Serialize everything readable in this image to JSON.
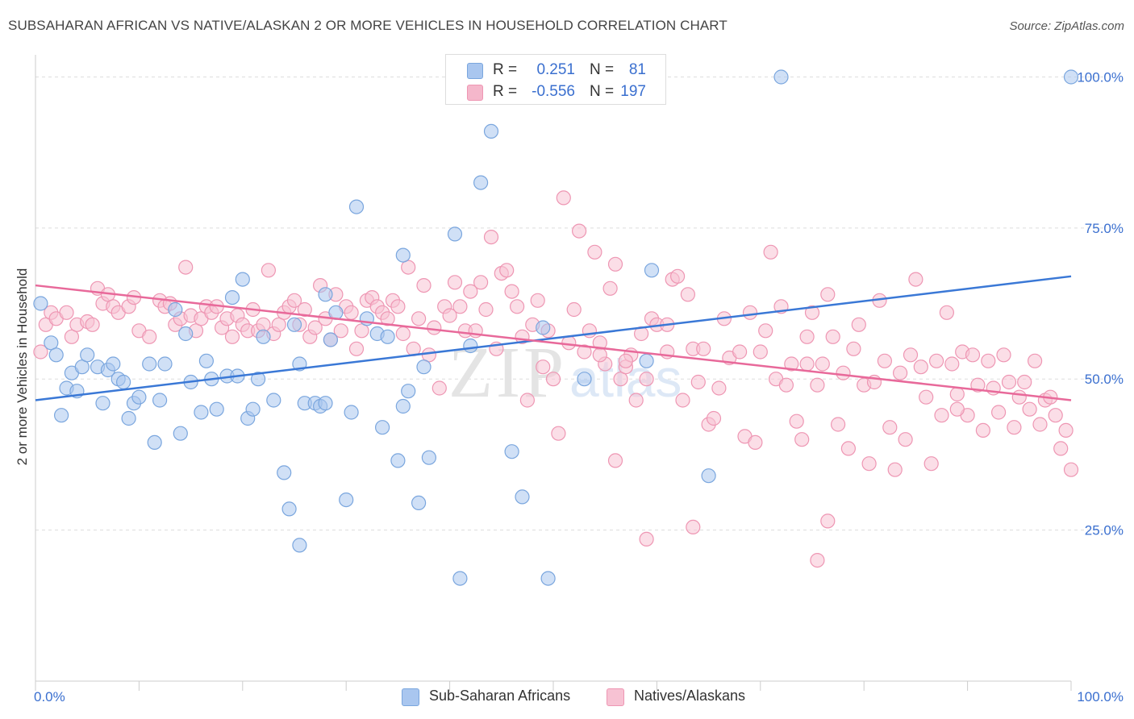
{
  "header": {
    "title": "SUBSAHARAN AFRICAN VS NATIVE/ALASKAN 2 OR MORE VEHICLES IN HOUSEHOLD CORRELATION CHART",
    "source": "Source: ZipAtlas.com"
  },
  "stats_legend": {
    "rows": [
      {
        "r_label": "R =",
        "r_value": "0.251",
        "n_label": "N =",
        "n_value": "81",
        "color": "#a9c6ef"
      },
      {
        "r_label": "R =",
        "r_value": "-0.556",
        "n_label": "N =",
        "n_value": "197",
        "color": "#f5b7cb"
      }
    ]
  },
  "colors": {
    "blue_fill": "#a9c6ef",
    "blue_stroke": "#7aa6de",
    "blue_line": "#3a78d6",
    "pink_fill": "#f7c2d3",
    "pink_stroke": "#ee96b3",
    "pink_line": "#e8699a",
    "grid": "#dddddd",
    "tick_text": "#3a6fcf"
  },
  "chart_data": {
    "type": "scatter",
    "title": "SUBSAHARAN AFRICAN VS NATIVE/ALASKAN 2 OR MORE VEHICLES IN HOUSEHOLD CORRELATION CHART",
    "xlabel": "",
    "ylabel": "2 or more Vehicles in Household",
    "xlim": [
      0,
      100
    ],
    "ylim": [
      0,
      105
    ],
    "x_tick_labels": [
      "0.0%",
      "100.0%"
    ],
    "y_ticks": [
      25,
      50,
      75,
      100
    ],
    "y_tick_labels": [
      "25.0%",
      "50.0%",
      "75.0%",
      "100.0%"
    ],
    "grid": true,
    "legend_position": "bottom",
    "watermark": "ZIPatlas",
    "series": [
      {
        "name": "Sub-Saharan Africans",
        "trend": {
          "x": [
            0,
            100
          ],
          "y": [
            46.5,
            67.0
          ]
        },
        "points": [
          [
            0.5,
            62.5
          ],
          [
            1.5,
            56
          ],
          [
            2,
            54
          ],
          [
            2.5,
            44
          ],
          [
            3,
            48.5
          ],
          [
            3.5,
            51
          ],
          [
            4,
            48
          ],
          [
            4.5,
            52
          ],
          [
            5,
            54
          ],
          [
            6,
            52
          ],
          [
            6.5,
            46
          ],
          [
            7,
            51.5
          ],
          [
            7.5,
            52.5
          ],
          [
            8,
            50
          ],
          [
            8.5,
            49.5
          ],
          [
            9,
            43.5
          ],
          [
            9.5,
            46
          ],
          [
            10,
            47
          ],
          [
            11,
            52.5
          ],
          [
            11.5,
            39.5
          ],
          [
            12,
            46.5
          ],
          [
            12.5,
            52.5
          ],
          [
            13.5,
            61.5
          ],
          [
            14,
            41
          ],
          [
            14.5,
            57.5
          ],
          [
            15,
            49.5
          ],
          [
            16,
            44.5
          ],
          [
            16.5,
            53
          ],
          [
            17,
            50
          ],
          [
            17.5,
            45
          ],
          [
            18.5,
            50.5
          ],
          [
            19,
            63.5
          ],
          [
            19.5,
            50.5
          ],
          [
            20,
            66.5
          ],
          [
            20.5,
            43.5
          ],
          [
            21,
            45
          ],
          [
            21.5,
            50
          ],
          [
            22,
            57
          ],
          [
            23,
            46.5
          ],
          [
            24,
            34.5
          ],
          [
            24.5,
            28.5
          ],
          [
            25,
            59
          ],
          [
            25.5,
            52.5
          ],
          [
            25.5,
            22.5
          ],
          [
            26,
            46
          ],
          [
            27,
            46
          ],
          [
            27.5,
            45.5
          ],
          [
            28,
            46
          ],
          [
            28,
            64
          ],
          [
            28.5,
            56.5
          ],
          [
            29,
            61
          ],
          [
            30,
            30
          ],
          [
            30.5,
            44.5
          ],
          [
            31,
            78.5
          ],
          [
            32,
            60
          ],
          [
            33,
            57.5
          ],
          [
            33.5,
            42
          ],
          [
            34,
            57
          ],
          [
            35,
            36.5
          ],
          [
            35.5,
            45.5
          ],
          [
            35.5,
            70.5
          ],
          [
            36,
            48
          ],
          [
            37,
            29.5
          ],
          [
            37.5,
            52
          ],
          [
            38,
            37
          ],
          [
            40.5,
            74
          ],
          [
            41,
            17
          ],
          [
            42,
            55.5
          ],
          [
            43,
            82.5
          ],
          [
            44,
            91
          ],
          [
            46,
            38
          ],
          [
            47,
            30.5
          ],
          [
            49,
            58.5
          ],
          [
            49.5,
            17
          ],
          [
            53,
            50
          ],
          [
            59,
            53
          ],
          [
            59.5,
            68
          ],
          [
            65,
            34
          ],
          [
            72,
            100
          ],
          [
            100,
            100
          ]
        ]
      },
      {
        "name": "Natives/Alaskans",
        "trend": {
          "x": [
            0,
            100
          ],
          "y": [
            65.5,
            46.5
          ]
        },
        "points": [
          [
            0.5,
            54.5
          ],
          [
            1,
            59
          ],
          [
            1.5,
            61
          ],
          [
            2,
            60
          ],
          [
            3,
            61
          ],
          [
            3.5,
            57
          ],
          [
            4,
            59
          ],
          [
            5,
            59.5
          ],
          [
            5.5,
            59
          ],
          [
            6,
            65
          ],
          [
            6.5,
            62.5
          ],
          [
            7,
            64
          ],
          [
            7.5,
            62
          ],
          [
            8,
            61
          ],
          [
            9,
            62
          ],
          [
            9.5,
            63.5
          ],
          [
            10,
            58
          ],
          [
            11,
            57
          ],
          [
            12,
            63
          ],
          [
            12.5,
            62
          ],
          [
            13,
            62.5
          ],
          [
            13.5,
            59
          ],
          [
            14,
            60
          ],
          [
            14.5,
            68.5
          ],
          [
            15,
            60.5
          ],
          [
            15.5,
            58
          ],
          [
            16,
            60
          ],
          [
            16.5,
            62
          ],
          [
            17,
            61
          ],
          [
            17.5,
            62
          ],
          [
            18,
            58.5
          ],
          [
            18.5,
            60
          ],
          [
            19,
            57
          ],
          [
            19.5,
            60.5
          ],
          [
            20,
            59
          ],
          [
            20.5,
            58
          ],
          [
            21,
            61.5
          ],
          [
            21.5,
            58
          ],
          [
            22,
            59
          ],
          [
            22.5,
            68
          ],
          [
            23,
            57.5
          ],
          [
            23.5,
            59
          ],
          [
            24,
            61
          ],
          [
            24.5,
            62
          ],
          [
            25,
            63
          ],
          [
            25.5,
            59
          ],
          [
            26,
            61.5
          ],
          [
            26.5,
            57
          ],
          [
            27,
            58.5
          ],
          [
            27.5,
            65.5
          ],
          [
            28,
            60
          ],
          [
            28.5,
            56.5
          ],
          [
            29,
            64
          ],
          [
            29.5,
            58
          ],
          [
            30,
            62
          ],
          [
            30.5,
            61
          ],
          [
            31,
            55
          ],
          [
            31.5,
            58
          ],
          [
            32,
            63
          ],
          [
            32.5,
            63.5
          ],
          [
            33,
            62
          ],
          [
            33.5,
            61
          ],
          [
            34,
            60
          ],
          [
            34.5,
            63
          ],
          [
            35,
            62
          ],
          [
            35.5,
            57.5
          ],
          [
            36,
            68.5
          ],
          [
            36.5,
            55
          ],
          [
            37,
            60
          ],
          [
            37.5,
            65.5
          ],
          [
            38,
            54
          ],
          [
            38.5,
            58.5
          ],
          [
            39,
            48.5
          ],
          [
            39.5,
            62
          ],
          [
            40,
            60.5
          ],
          [
            40.5,
            66
          ],
          [
            41,
            62
          ],
          [
            41.5,
            58
          ],
          [
            42,
            64.5
          ],
          [
            42.5,
            58
          ],
          [
            43,
            66
          ],
          [
            43.5,
            61.5
          ],
          [
            44,
            73.5
          ],
          [
            44.5,
            55
          ],
          [
            45,
            67.5
          ],
          [
            45.5,
            68
          ],
          [
            46,
            64.5
          ],
          [
            46.5,
            62
          ],
          [
            47,
            57
          ],
          [
            47.5,
            46.5
          ],
          [
            48,
            59
          ],
          [
            48.5,
            63
          ],
          [
            49,
            52
          ],
          [
            49.5,
            58
          ],
          [
            50,
            50
          ],
          [
            50.5,
            41
          ],
          [
            51,
            80
          ],
          [
            51.5,
            56
          ],
          [
            52,
            61.5
          ],
          [
            52.5,
            74.5
          ],
          [
            53,
            54.5
          ],
          [
            53.5,
            58
          ],
          [
            54,
            71
          ],
          [
            54.5,
            56
          ],
          [
            55,
            52.5
          ],
          [
            55.5,
            65
          ],
          [
            56,
            69
          ],
          [
            56.5,
            50
          ],
          [
            57,
            52
          ],
          [
            57.5,
            54
          ],
          [
            58,
            46.5
          ],
          [
            58.5,
            57.5
          ],
          [
            59,
            50
          ],
          [
            59.5,
            60
          ],
          [
            60,
            59
          ],
          [
            61,
            54.5
          ],
          [
            61.5,
            66.5
          ],
          [
            62,
            67
          ],
          [
            62.5,
            46.5
          ],
          [
            63,
            64
          ],
          [
            63.5,
            55
          ],
          [
            64,
            49.5
          ],
          [
            64.5,
            55
          ],
          [
            65,
            42.5
          ],
          [
            65.5,
            43.5
          ],
          [
            66,
            48.5
          ],
          [
            66.5,
            60
          ],
          [
            67,
            53.5
          ],
          [
            68,
            54.5
          ],
          [
            68.5,
            40.5
          ],
          [
            69,
            61
          ],
          [
            69.5,
            39.5
          ],
          [
            70,
            54.5
          ],
          [
            70.5,
            58
          ],
          [
            71,
            71
          ],
          [
            71.5,
            50
          ],
          [
            72,
            62
          ],
          [
            72.5,
            49
          ],
          [
            73,
            52.5
          ],
          [
            73.5,
            43
          ],
          [
            74,
            40
          ],
          [
            74.5,
            57
          ],
          [
            75,
            61
          ],
          [
            75.5,
            49
          ],
          [
            76,
            52.5
          ],
          [
            76.5,
            64
          ],
          [
            77,
            57
          ],
          [
            77.5,
            42.5
          ],
          [
            78,
            51
          ],
          [
            78.5,
            38.5
          ],
          [
            79,
            55
          ],
          [
            79.5,
            59
          ],
          [
            80,
            49
          ],
          [
            80.5,
            36
          ],
          [
            81,
            49.5
          ],
          [
            81.5,
            63
          ],
          [
            82,
            53
          ],
          [
            82.5,
            42
          ],
          [
            83,
            35
          ],
          [
            83.5,
            51
          ],
          [
            84,
            40
          ],
          [
            84.5,
            54
          ],
          [
            85,
            66.5
          ],
          [
            85.5,
            52
          ],
          [
            86,
            47
          ],
          [
            86.5,
            36
          ],
          [
            87,
            53
          ],
          [
            87.5,
            44
          ],
          [
            88,
            61
          ],
          [
            88.5,
            52.5
          ],
          [
            89,
            47.5
          ],
          [
            89.5,
            54.5
          ],
          [
            90,
            44
          ],
          [
            90.5,
            54
          ],
          [
            91,
            49
          ],
          [
            91.5,
            41.5
          ],
          [
            92,
            53
          ],
          [
            92.5,
            48.5
          ],
          [
            93,
            44.5
          ],
          [
            93.5,
            54
          ],
          [
            94,
            49.5
          ],
          [
            94.5,
            42
          ],
          [
            95,
            47
          ],
          [
            95.5,
            49.5
          ],
          [
            96,
            45
          ],
          [
            96.5,
            53
          ],
          [
            97,
            42.5
          ],
          [
            97.5,
            46.5
          ],
          [
            98,
            47
          ],
          [
            98.5,
            44
          ],
          [
            99,
            38.5
          ],
          [
            99.5,
            41.5
          ],
          [
            100,
            35
          ],
          [
            56,
            36.5
          ],
          [
            54.5,
            54
          ],
          [
            63.5,
            25.5
          ],
          [
            61,
            59
          ],
          [
            57,
            53
          ],
          [
            59,
            23.5
          ],
          [
            76.5,
            26.5
          ],
          [
            75.5,
            20
          ],
          [
            74.5,
            52.5
          ],
          [
            89,
            45
          ]
        ]
      }
    ]
  },
  "bottom_legend": {
    "items": [
      {
        "label": "Sub-Saharan Africans",
        "color": "#a9c6ef"
      },
      {
        "label": "Natives/Alaskans",
        "color": "#f7c2d3"
      }
    ]
  }
}
